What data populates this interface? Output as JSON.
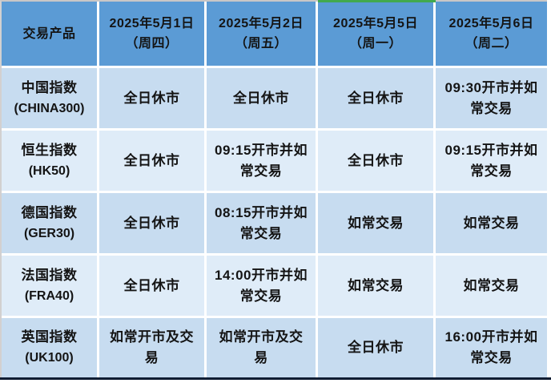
{
  "header": {
    "product_label": "交易产品",
    "dates": [
      {
        "date": "2025年5月1日",
        "weekday": "（周四）"
      },
      {
        "date": "2025年5月2日",
        "weekday": "（周五）"
      },
      {
        "date": "2025年5月5日",
        "weekday": "（周一）",
        "highlighted": true
      },
      {
        "date": "2025年5月6日",
        "weekday": "（周二）"
      }
    ]
  },
  "rows": [
    {
      "name": "中国指数",
      "code": "(CHINA300)",
      "cells": [
        "全日休市",
        "全日休市",
        "全日休市",
        "09:30开市并如常交易"
      ]
    },
    {
      "name": "恒生指数",
      "code": "(HK50)",
      "cells": [
        "全日休市",
        "09:15开市并如常交易",
        "全日休市",
        "09:15开市并如常交易"
      ]
    },
    {
      "name": "德国指数",
      "code": "(GER30)",
      "cells": [
        "全日休市",
        "08:15开市并如常交易",
        "如常交易",
        "如常交易"
      ]
    },
    {
      "name": "法国指数",
      "code": "(FRA40)",
      "cells": [
        "全日休市",
        "14:00开市并如常交易",
        "如常交易",
        "如常交易"
      ]
    },
    {
      "name": "英国指数",
      "code": "(UK100)",
      "cells": [
        "如常开市及交易",
        "如常开市及交易",
        "全日休市",
        "16:00开市并如常交易"
      ]
    }
  ],
  "colors": {
    "header_bg": "#5b9bd5",
    "row_band_a": "#c7dcf0",
    "row_band_b": "#dfecf8",
    "accent_green": "#42a94e",
    "bottom_border": "#101d33",
    "text": "#141414"
  }
}
